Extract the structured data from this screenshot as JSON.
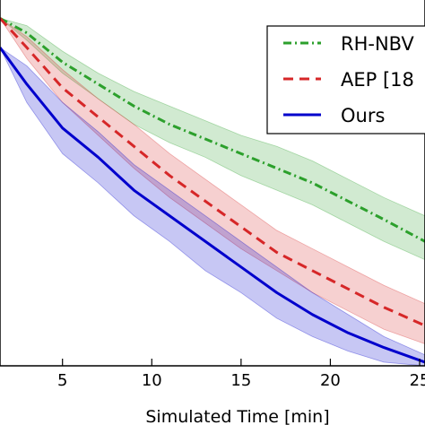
{
  "chart_data": {
    "type": "line",
    "title": "",
    "xlabel": "Simulated Time [min]",
    "ylabel": "",
    "xlim": [
      1.5,
      25.3
    ],
    "ylim": [
      0,
      1
    ],
    "x_ticks": [
      "5",
      "10",
      "15",
      "20",
      "25"
    ],
    "grid": false,
    "legend_placement": "top-right",
    "series": [
      {
        "name": "RH-NBV",
        "color": "#2ca02c",
        "style": "dash-dot",
        "x": [
          1.5,
          3,
          5,
          7,
          9,
          11,
          13,
          15,
          17,
          19,
          21,
          23,
          25.3
        ],
        "y": [
          0.95,
          0.91,
          0.83,
          0.77,
          0.71,
          0.66,
          0.62,
          0.58,
          0.54,
          0.5,
          0.45,
          0.4,
          0.34
        ],
        "lower": [
          0.95,
          0.89,
          0.8,
          0.73,
          0.66,
          0.61,
          0.57,
          0.52,
          0.48,
          0.44,
          0.39,
          0.34,
          0.29
        ],
        "upper": [
          0.95,
          0.93,
          0.86,
          0.8,
          0.75,
          0.71,
          0.67,
          0.63,
          0.6,
          0.56,
          0.51,
          0.46,
          0.41
        ]
      },
      {
        "name": "AEP [18",
        "color": "#d62728",
        "style": "dashed",
        "x": [
          1.5,
          3,
          5,
          7,
          9,
          11,
          13,
          15,
          17,
          19,
          21,
          23,
          25.3
        ],
        "y": [
          0.95,
          0.87,
          0.76,
          0.68,
          0.6,
          0.52,
          0.45,
          0.38,
          0.31,
          0.26,
          0.21,
          0.16,
          0.11
        ],
        "lower": [
          0.95,
          0.84,
          0.72,
          0.63,
          0.54,
          0.46,
          0.39,
          0.32,
          0.26,
          0.2,
          0.15,
          0.1,
          0.06
        ],
        "upper": [
          0.95,
          0.9,
          0.81,
          0.73,
          0.66,
          0.58,
          0.51,
          0.44,
          0.37,
          0.32,
          0.27,
          0.22,
          0.17
        ]
      },
      {
        "name": "Ours",
        "color": "#0000cc",
        "style": "solid",
        "x": [
          1.5,
          3,
          5,
          7,
          9,
          11,
          13,
          15,
          17,
          19,
          21,
          23,
          25.3
        ],
        "y": [
          0.87,
          0.77,
          0.65,
          0.57,
          0.48,
          0.41,
          0.34,
          0.27,
          0.2,
          0.14,
          0.09,
          0.05,
          0.01
        ],
        "lower": [
          0.87,
          0.72,
          0.58,
          0.5,
          0.41,
          0.34,
          0.26,
          0.2,
          0.13,
          0.08,
          0.04,
          0.01,
          0.0
        ],
        "upper": [
          0.87,
          0.82,
          0.72,
          0.64,
          0.55,
          0.48,
          0.41,
          0.34,
          0.27,
          0.2,
          0.14,
          0.08,
          0.03
        ]
      }
    ]
  }
}
